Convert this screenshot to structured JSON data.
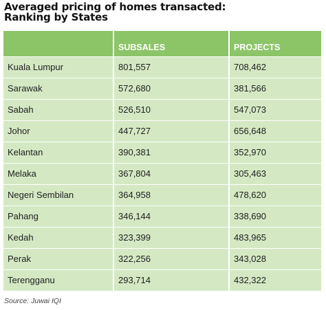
{
  "chart_data": {
    "type": "table",
    "title_lines": [
      "Averaged pricing of homes transacted:",
      "Ranking by States"
    ],
    "columns": [
      "",
      "SUBSALES",
      "PROJECTS"
    ],
    "rows": [
      {
        "state": "Kuala Lumpur",
        "subsales": "801,557",
        "projects": "708,462"
      },
      {
        "state": "Sarawak",
        "subsales": "572,680",
        "projects": "381,566"
      },
      {
        "state": "Sabah",
        "subsales": "526,510",
        "projects": "547,073"
      },
      {
        "state": "Johor",
        "subsales": "447,727",
        "projects": "656,648"
      },
      {
        "state": "Kelantan",
        "subsales": "390,381",
        "projects": "352,970"
      },
      {
        "state": "Melaka",
        "subsales": "367,804",
        "projects": "305,463"
      },
      {
        "state": "Negeri Sembilan",
        "subsales": "364,958",
        "projects": "478,620"
      },
      {
        "state": "Pahang",
        "subsales": "346,144",
        "projects": "338,690"
      },
      {
        "state": "Kedah",
        "subsales": "323,399",
        "projects": "483,965"
      },
      {
        "state": "Perak",
        "subsales": "322,256",
        "projects": "343,028"
      },
      {
        "state": "Terengganu",
        "subsales": "293,714",
        "projects": "432,322"
      }
    ],
    "source": "Source: Juwai IQI"
  },
  "colors": {
    "header_bg": "#8cc568",
    "row_bg": "#d4e9c3",
    "header_text": "#ffffff"
  }
}
